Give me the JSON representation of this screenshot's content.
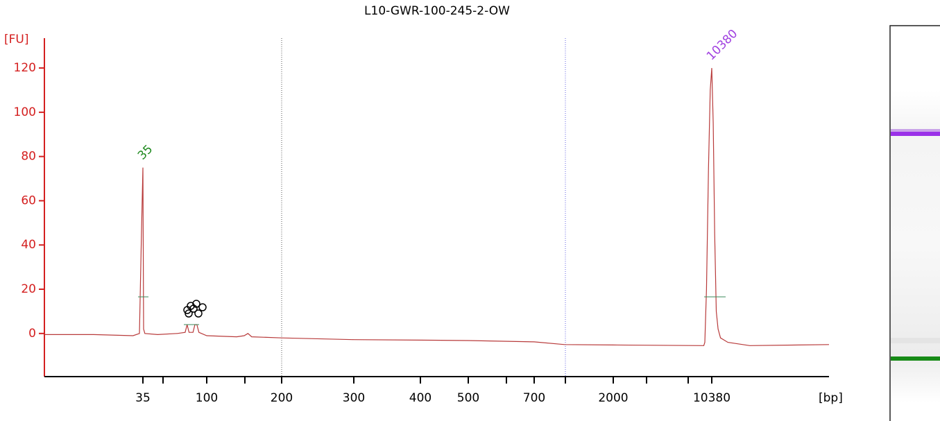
{
  "chart_data": {
    "type": "line",
    "title": "L10-GWR-100-245-2-OW",
    "y_label": "[FU]",
    "x_label": "[bp]",
    "xlim": [
      15,
      20000
    ],
    "xticks": [
      35,
      100,
      200,
      300,
      400,
      500,
      700,
      2000,
      10380
    ],
    "ylim": [
      -19.5,
      133.5
    ],
    "yticks": [
      0,
      20,
      40,
      60,
      80,
      100,
      120
    ],
    "axis_color": "#d42020",
    "series": [
      {
        "color": "#b83a3a",
        "x": [
          15,
          25,
          33,
          34.3,
          34.7,
          35,
          35.3,
          35.7,
          37,
          50,
          70,
          78,
          80,
          82,
          86,
          88,
          90,
          92,
          100,
          140,
          150,
          155,
          160,
          200,
          300,
          400,
          500,
          700,
          1200,
          2000,
          9700,
          9790,
          9930,
          10100,
          10250,
          10380,
          10500,
          10620,
          10750,
          10900,
          11100,
          11400,
          11700,
          13500,
          20000
        ],
        "values": [
          -0.5,
          -0.5,
          -1,
          0,
          45,
          75,
          45,
          2,
          0,
          -0.5,
          0,
          0.5,
          4,
          0.5,
          0.5,
          4,
          4,
          0.5,
          -1,
          -1.5,
          -1,
          0,
          -1.5,
          -2,
          -2.8,
          -3,
          -3.2,
          -3.8,
          -5,
          -5.2,
          -5.5,
          -4,
          20,
          75,
          110,
          120,
          95,
          45,
          10,
          2,
          -2,
          -3,
          -4,
          -5.5,
          -5
        ]
      }
    ],
    "annotations": [
      {
        "text": "35",
        "x": 35,
        "y": 75,
        "color": "#1f8a1f"
      },
      {
        "text": "10380",
        "x": 10380,
        "y": 120,
        "color": "#a040e0"
      }
    ]
  }
}
